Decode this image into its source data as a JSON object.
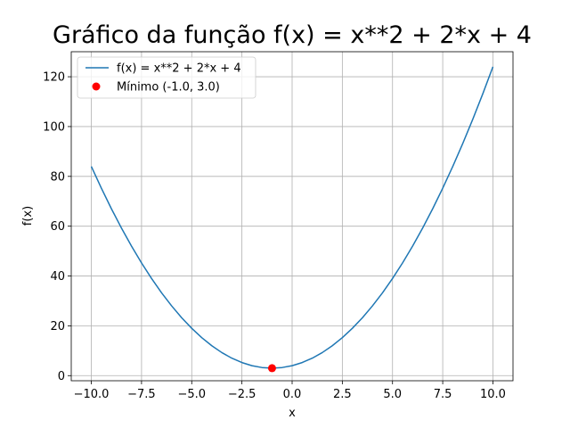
{
  "chart_data": {
    "type": "line",
    "title": "Gráfico da função f(x) = x**2 + 2*x + 4",
    "xlabel": "x",
    "ylabel": "f(x)",
    "xlim": [
      -11,
      11
    ],
    "ylim": [
      -2.05,
      130.05
    ],
    "x_ticks": [
      -10.0,
      -7.5,
      -5.0,
      -2.5,
      0.0,
      2.5,
      5.0,
      7.5,
      10.0
    ],
    "x_tick_labels": [
      "−10.0",
      "−7.5",
      "−5.0",
      "−2.5",
      "0.0",
      "2.5",
      "5.0",
      "7.5",
      "10.0"
    ],
    "y_ticks": [
      0,
      20,
      40,
      60,
      80,
      100,
      120
    ],
    "y_tick_labels": [
      "0",
      "20",
      "40",
      "60",
      "80",
      "100",
      "120"
    ],
    "grid": true,
    "legend_position": "top-left",
    "series": [
      {
        "name": "f(x) = x**2 + 2*x + 4",
        "color": "#1f77b4",
        "x": [
          -10,
          -9.5,
          -9,
          -8.5,
          -8,
          -7.5,
          -7,
          -6.5,
          -6,
          -5.5,
          -5,
          -4.5,
          -4,
          -3.5,
          -3,
          -2.5,
          -2,
          -1.5,
          -1,
          -0.5,
          0,
          0.5,
          1,
          1.5,
          2,
          2.5,
          3,
          3.5,
          4,
          4.5,
          5,
          5.5,
          6,
          6.5,
          7,
          7.5,
          8,
          8.5,
          9,
          9.5,
          10
        ],
        "y": [
          84,
          75.25,
          67,
          59.25,
          52,
          45.25,
          39,
          33.25,
          28,
          23.25,
          19,
          15.25,
          12,
          9.25,
          7,
          5.25,
          4,
          3.25,
          3,
          3.25,
          4,
          5.25,
          7,
          9.25,
          12,
          15.25,
          19,
          23.25,
          28,
          33.25,
          39,
          45.25,
          52,
          59.25,
          67,
          75.25,
          84,
          93.25,
          103,
          113.25,
          124
        ]
      }
    ],
    "points": [
      {
        "name": "Mínimo (-1.0, 3.0)",
        "color": "#ff0000",
        "x": -1.0,
        "y": 3.0
      }
    ]
  }
}
